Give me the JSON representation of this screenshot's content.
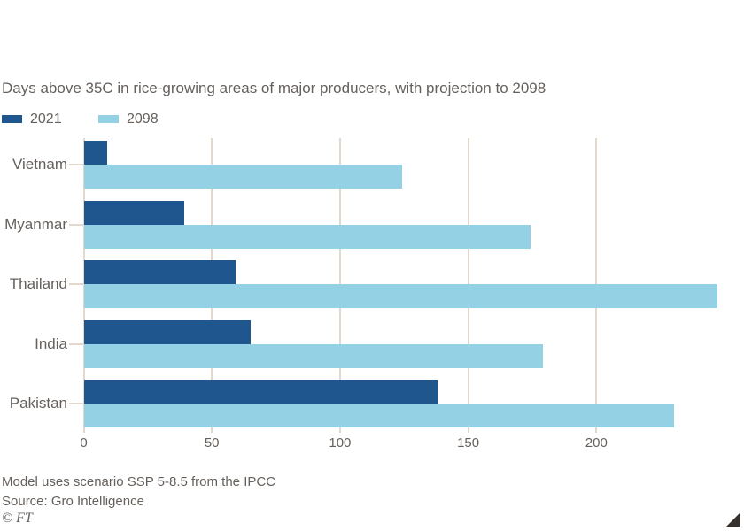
{
  "title": "Days above 35C in rice-growing areas of major producers, with projection to 2098",
  "legend": {
    "items": [
      {
        "label": "2021",
        "color": "#1f568e"
      },
      {
        "label": "2098",
        "color": "#94d1e4"
      }
    ]
  },
  "chart_data": {
    "type": "bar",
    "orientation": "horizontal",
    "title": "Days above 35C in rice-growing areas of major producers, with projection to 2098",
    "categories": [
      "Vietnam",
      "Myanmar",
      "Thailand",
      "India",
      "Pakistan"
    ],
    "series": [
      {
        "name": "2021",
        "color": "#1f568e",
        "values": [
          9,
          39,
          59,
          65,
          138
        ]
      },
      {
        "name": "2098",
        "color": "#94d1e4",
        "values": [
          124,
          174,
          247,
          179,
          230
        ]
      }
    ],
    "x_ticks": [
      0,
      50,
      100,
      150,
      200
    ],
    "xlim": [
      0,
      257
    ],
    "xlabel": "",
    "ylabel": "",
    "grid": "vertical",
    "legend_position": "top-left"
  },
  "footer": {
    "note": "Model uses scenario SSP 5-8.5 from the IPCC",
    "source": "Source: Gro Intelligence",
    "copyright": "© FT"
  },
  "colors": {
    "series_2021": "#1f568e",
    "series_2098": "#94d1e4",
    "text": "#66605c",
    "gridline": "#e3d8cc",
    "corner_triangle": "#33302e",
    "background": "#ffffff"
  }
}
